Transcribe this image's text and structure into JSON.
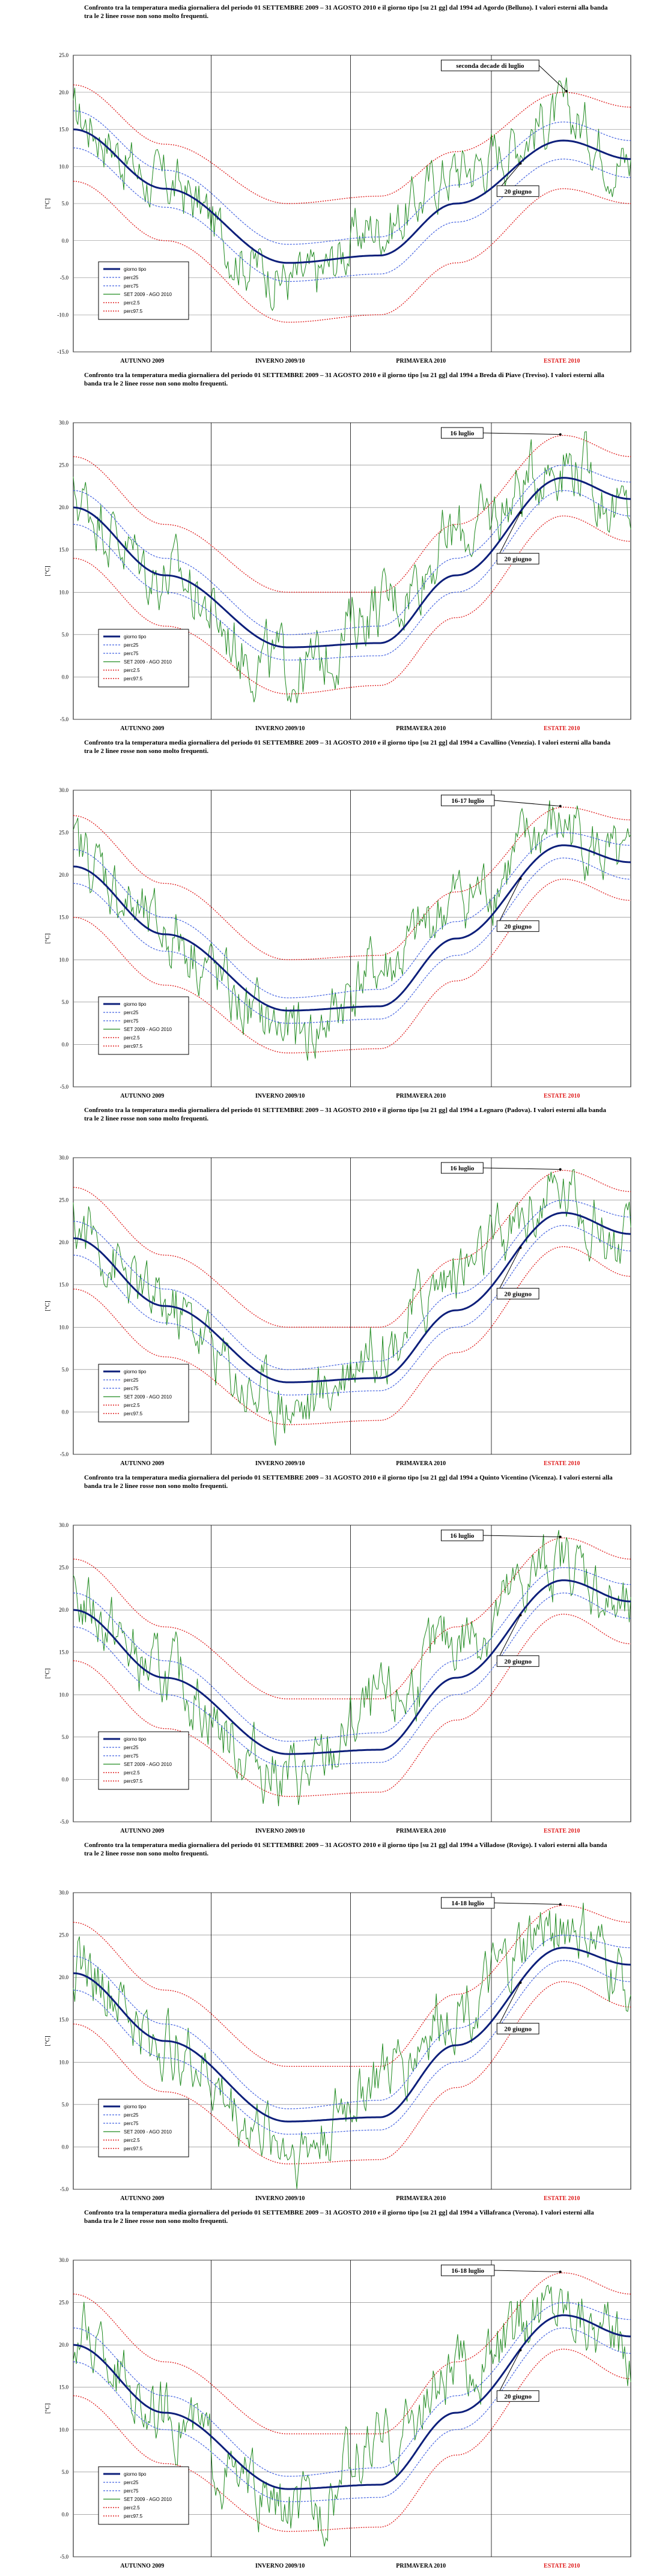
{
  "legend_labels": [
    "giorno tipo",
    "perc25",
    "perc75",
    "SET 2009 - AGO 2010",
    "perc2.5",
    "perc97.5"
  ],
  "colors": {
    "median": "#0d1f7a",
    "quartile": "#4060e0",
    "observed": "#1f8a1f",
    "extreme": "#e02020",
    "grid": "#000000",
    "estate": "#e02020"
  },
  "chart_data": [
    {
      "type": "line",
      "title": "Confronto tra la temperatura media giornaliera del periodo 01 SETTEMBRE 2009 – 31 AGOSTO 2010 e il giorno tipo [su 21 gg] dal 1994 ad Agordo (Belluno). I valori esterni alla banda tra le 2 linee rosse non sono molto frequenti.",
      "ylabel": "[°C]",
      "yticks": [
        "25.0",
        "20.0",
        "15.0",
        "10.0",
        "5.0",
        "0.0",
        "-5.0",
        "-10.0",
        "-15.0"
      ],
      "ylim": [
        -15,
        25
      ],
      "seasons": [
        "AUTUNNO 2009",
        "INVERNO 2009/10",
        "PRIMAVERA 2010",
        "ESTATE 2010"
      ],
      "annotations": [
        {
          "text": "seconda decade di luglio",
          "x": 322
        },
        {
          "text": "20 giugno",
          "x": 292
        }
      ],
      "x_days": [
        0,
        60,
        140,
        200,
        250,
        320,
        364
      ],
      "median": [
        15,
        7,
        -3,
        -2,
        5,
        13.5,
        11
      ],
      "perc25": [
        12.5,
        4.5,
        -5.5,
        -4.5,
        2.5,
        11,
        8.5
      ],
      "perc75": [
        17.5,
        9.5,
        -0.5,
        0.5,
        7.5,
        16,
        13.5
      ],
      "perc2_5": [
        8,
        0,
        -11,
        -10,
        -3,
        7,
        5
      ],
      "perc97_5": [
        21,
        13,
        5,
        6,
        12,
        20,
        18
      ],
      "observed_anchor": [
        18,
        8,
        -5,
        -8,
        6,
        15,
        20,
        10
      ]
    },
    {
      "type": "line",
      "title": "Confronto tra la temperatura media giornaliera del periodo 01 SETTEMBRE 2009 – 31 AGOSTO 2010 e il giorno tipo [su 21 gg] dal 1994 a Breda di Piave (Treviso). I valori esterni alla banda tra le 2 linee rosse non sono molto frequenti.",
      "ylabel": "[°C]",
      "yticks": [
        "30.0",
        "25.0",
        "20.0",
        "15.0",
        "10.0",
        "5.0",
        "0.0",
        "-5.0"
      ],
      "ylim": [
        -5,
        30
      ],
      "seasons": [
        "AUTUNNO 2009",
        "INVERNO 2009/10",
        "PRIMAVERA 2010",
        "ESTATE 2010"
      ],
      "annotations": [
        {
          "text": "16 luglio",
          "x": 318
        },
        {
          "text": "20 giugno",
          "x": 292
        }
      ],
      "x_days": [
        0,
        60,
        140,
        200,
        250,
        320,
        364
      ],
      "median": [
        20,
        12,
        3.5,
        4,
        12,
        23.5,
        21
      ],
      "perc25": [
        18,
        10,
        2,
        2.5,
        10,
        22,
        19
      ],
      "perc75": [
        22,
        14,
        5,
        6,
        14,
        25,
        23
      ],
      "perc2_5": [
        14,
        6,
        -2,
        -1,
        7,
        19,
        16
      ],
      "perc97_5": [
        26,
        18,
        10,
        10,
        18,
        28.5,
        26
      ],
      "observed_anchor": [
        22,
        12,
        0,
        -2,
        13,
        22,
        28,
        17
      ]
    },
    {
      "type": "line",
      "title": "Confronto tra la temperatura media giornaliera del periodo 01 SETTEMBRE 2009 – 31 AGOSTO 2010 e il giorno tipo [su 21 gg] dal 1994 a Cavallino (Venezia). I valori esterni alla banda tra le 2 linee rosse non sono molto frequenti.",
      "ylabel": "[°C]",
      "yticks": [
        "30.0",
        "25.0",
        "20.0",
        "15.0",
        "10.0",
        "5.0",
        "0.0",
        "-5.0"
      ],
      "ylim": [
        -5,
        30
      ],
      "seasons": [
        "AUTUNNO 2009",
        "INVERNO 2009/10",
        "PRIMAVERA 2010",
        "ESTATE 2010"
      ],
      "annotations": [
        {
          "text": "16-17 luglio",
          "x": 318
        },
        {
          "text": "20 giugno",
          "x": 292
        }
      ],
      "x_days": [
        0,
        60,
        140,
        200,
        250,
        320,
        364
      ],
      "median": [
        21,
        13,
        4,
        4.5,
        12.5,
        23.5,
        21.5
      ],
      "perc25": [
        19,
        11,
        2.5,
        3,
        10.5,
        22,
        19.5
      ],
      "perc75": [
        23,
        15,
        5.5,
        6.5,
        14.5,
        25,
        23.5
      ],
      "perc2_5": [
        15,
        7,
        -1,
        -0.5,
        7.5,
        19.5,
        17
      ],
      "perc97_5": [
        27,
        19,
        10,
        10.5,
        18,
        28,
        26.5
      ],
      "observed_anchor": [
        24,
        13,
        1,
        -2,
        13,
        22,
        28,
        18
      ]
    },
    {
      "type": "line",
      "title": "Confronto tra la temperatura media giornaliera del periodo 01 SETTEMBRE 2009 – 31 AGOSTO 2010 e il giorno tipo [su 21 gg] dal 1994 a Legnaro (Padova). I valori esterni alla banda tra le 2 linee rosse non sono molto frequenti.",
      "ylabel": "[°C]",
      "yticks": [
        "30.0",
        "25.0",
        "20.0",
        "15.0",
        "10.0",
        "5.0",
        "0.0",
        "-5.0"
      ],
      "ylim": [
        -5,
        30
      ],
      "seasons": [
        "AUTUNNO 2009",
        "INVERNO 2009/10",
        "PRIMAVERA 2010",
        "ESTATE 2010"
      ],
      "annotations": [
        {
          "text": "16 luglio",
          "x": 318
        },
        {
          "text": "20 giugno",
          "x": 292
        }
      ],
      "x_days": [
        0,
        60,
        140,
        200,
        250,
        320,
        364
      ],
      "median": [
        20.5,
        12.5,
        3.5,
        4,
        12,
        23.5,
        21
      ],
      "perc25": [
        18.5,
        10.5,
        2,
        2.5,
        10,
        22,
        19
      ],
      "perc75": [
        22.5,
        14.5,
        5,
        6,
        14,
        25,
        23
      ],
      "perc2_5": [
        14.5,
        6.5,
        -1.5,
        -1,
        7,
        19.5,
        16
      ],
      "perc97_5": [
        26.5,
        18.5,
        10,
        10,
        18,
        28.5,
        26
      ],
      "observed_anchor": [
        23,
        12,
        0,
        -2,
        13,
        22,
        28,
        17
      ]
    },
    {
      "type": "line",
      "title": "Confronto tra la temperatura media giornaliera del periodo 01 SETTEMBRE 2009 – 31 AGOSTO 2010 e il giorno tipo [su 21 gg] dal 1994 a Quinto Vicentino (Vicenza). I valori esterni alla banda tra le 2 linee rosse non sono molto frequenti.",
      "ylabel": "[°C]",
      "yticks": [
        "30.0",
        "25.0",
        "20.0",
        "15.0",
        "10.0",
        "5.0",
        "0.0",
        "-5.0"
      ],
      "ylim": [
        -5,
        30
      ],
      "seasons": [
        "AUTUNNO 2009",
        "INVERNO 2009/10",
        "PRIMAVERA 2010",
        "ESTATE 2010"
      ],
      "annotations": [
        {
          "text": "16 luglio",
          "x": 318
        },
        {
          "text": "20 giugno",
          "x": 292
        }
      ],
      "x_days": [
        0,
        60,
        140,
        200,
        250,
        320,
        364
      ],
      "median": [
        20,
        12,
        3,
        3.5,
        12,
        23.5,
        21
      ],
      "perc25": [
        18,
        10,
        1.5,
        2,
        10,
        22,
        19
      ],
      "perc75": [
        22,
        14,
        4.5,
        5.5,
        14,
        25,
        23
      ],
      "perc2_5": [
        14,
        6,
        -2,
        -1.5,
        7,
        19.5,
        16
      ],
      "perc97_5": [
        26,
        18,
        9.5,
        9.5,
        18,
        28.5,
        26
      ],
      "observed_anchor": [
        22,
        12,
        0,
        -3,
        13,
        22,
        28,
        17
      ]
    },
    {
      "type": "line",
      "title": "Confronto tra la temperatura media giornaliera del periodo 01 SETTEMBRE 2009 – 31 AGOSTO 2010 e il giorno tipo [su 21 gg] dal 1994 a Villadose (Rovigo). I valori esterni alla banda tra le 2 linee rosse non sono molto frequenti.",
      "ylabel": "[°C]",
      "yticks": [
        "30.0",
        "25.0",
        "20.0",
        "15.0",
        "10.0",
        "5.0",
        "0.0",
        "-5.0"
      ],
      "ylim": [
        -5,
        30
      ],
      "seasons": [
        "AUTUNNO 2009",
        "INVERNO 2009/10",
        "PRIMAVERA 2010",
        "ESTATE 2010"
      ],
      "annotations": [
        {
          "text": "14-18 luglio",
          "x": 318
        },
        {
          "text": "20 giugno",
          "x": 292
        }
      ],
      "x_days": [
        0,
        60,
        140,
        200,
        250,
        320,
        364
      ],
      "median": [
        20.5,
        12.5,
        3,
        3.5,
        12,
        23.5,
        21.5
      ],
      "perc25": [
        18.5,
        10.5,
        1.5,
        2,
        10,
        22,
        19.5
      ],
      "perc75": [
        22.5,
        14.5,
        4.5,
        5.5,
        14,
        25,
        23.5
      ],
      "perc2_5": [
        14.5,
        6.5,
        -2,
        -1.5,
        7,
        19.5,
        16.5
      ],
      "perc97_5": [
        26.5,
        18.5,
        9.5,
        9.5,
        18,
        28.5,
        26.5
      ],
      "observed_anchor": [
        23,
        12,
        0,
        -3,
        13,
        22,
        29,
        17
      ]
    },
    {
      "type": "line",
      "title": "Confronto tra la temperatura media giornaliera del periodo 01 SETTEMBRE 2009 – 31 AGOSTO 2010 e il giorno tipo [su 21 gg] dal 1994 a Villafranca (Verona). I valori esterni alla banda tra le 2 linee rosse non sono molto frequenti.",
      "ylabel": "[°C]",
      "yticks": [
        "30.0",
        "25.0",
        "20.0",
        "15.0",
        "10.0",
        "5.0",
        "0.0",
        "-5.0"
      ],
      "ylim": [
        -5,
        30
      ],
      "seasons": [
        "AUTUNNO 2009",
        "INVERNO 2009/10",
        "PRIMAVERA 2010",
        "ESTATE 2010"
      ],
      "annotations": [
        {
          "text": "16-18 luglio",
          "x": 318
        },
        {
          "text": "20 giugno",
          "x": 292
        }
      ],
      "x_days": [
        0,
        60,
        140,
        200,
        250,
        320,
        364
      ],
      "median": [
        20,
        12,
        3,
        3.5,
        12,
        23.5,
        21
      ],
      "perc25": [
        18,
        10,
        1.5,
        2,
        10,
        22,
        19
      ],
      "perc75": [
        22,
        14,
        4.5,
        5.5,
        14,
        25,
        23
      ],
      "perc2_5": [
        14,
        6,
        -2,
        -1.5,
        7,
        19.5,
        16
      ],
      "perc97_5": [
        26,
        18,
        9.5,
        9.5,
        18,
        28.5,
        26
      ],
      "observed_anchor": [
        22,
        12,
        0,
        -3,
        13,
        22,
        28,
        17
      ]
    }
  ]
}
